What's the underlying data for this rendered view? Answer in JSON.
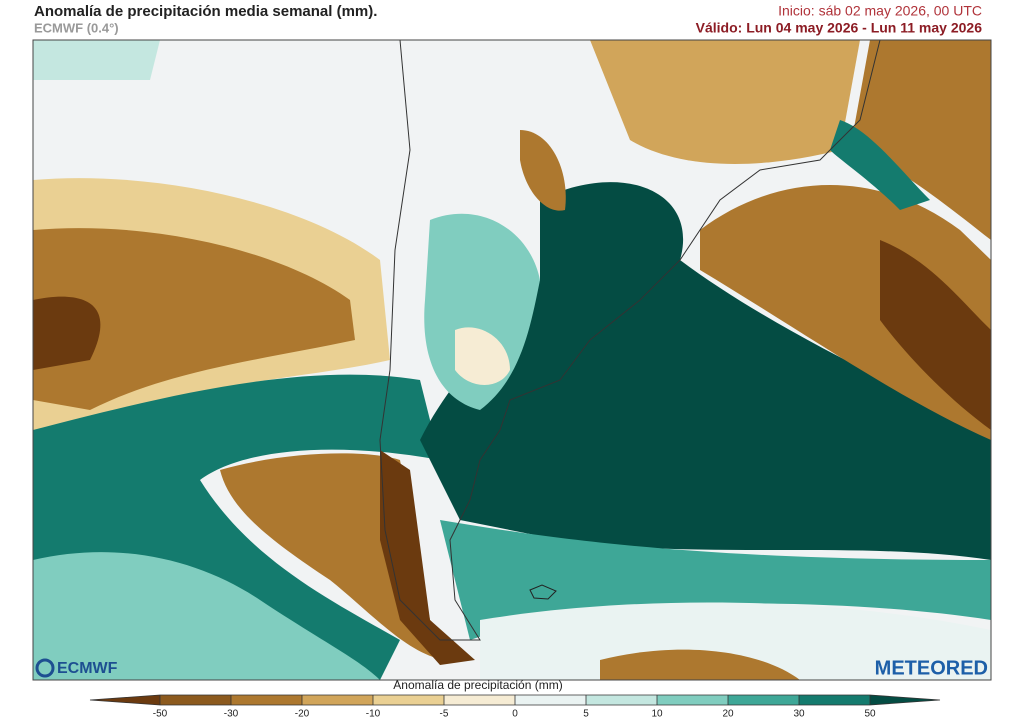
{
  "header": {
    "title": "Anomalía de precipitación media semanal (mm).",
    "model": "ECMWF (0.4°)",
    "init": "Inicio:  sáb 02 may 2026, 00 UTC",
    "valid": "Válido: Lun 04 may 2026 - Lun 11 may 2026"
  },
  "logos": {
    "left": "ECMWF",
    "right": "METEORED"
  },
  "colorbar": {
    "label": "Anomalía de precipitación (mm)",
    "ticks": [
      -50,
      -30,
      -20,
      -10,
      -5,
      0,
      5,
      10,
      20,
      30,
      50
    ],
    "colors": [
      "#6b3a0f",
      "#8c5a1e",
      "#ad782f",
      "#d1a55a",
      "#ead093",
      "#f6ecd4",
      "#eaf3f2",
      "#c4e7e0",
      "#80cdbf",
      "#3ea797",
      "#147b6e",
      "#044c43"
    ]
  }
}
